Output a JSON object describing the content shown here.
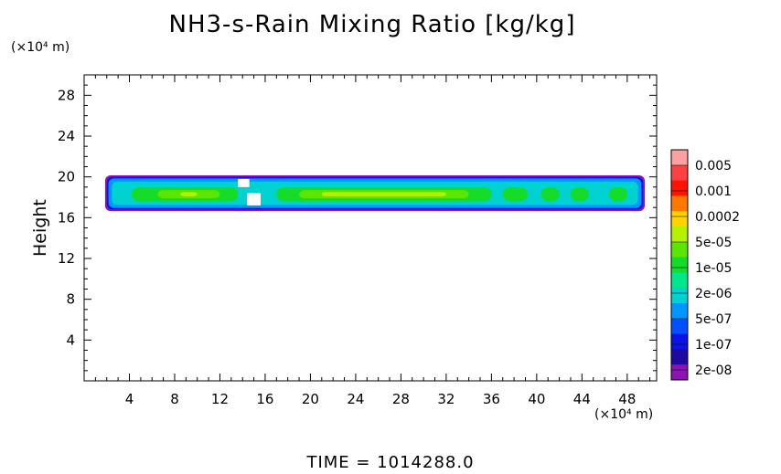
{
  "title": "NH3-s-Rain Mixing Ratio [kg/kg]",
  "y_unit": "(×10⁴ m)",
  "x_unit": "(×10⁴ m)",
  "time_label": "TIME  =  1014288.0",
  "chart_data": {
    "type": "heatmap",
    "title": "NH3-s-Rain Mixing Ratio [kg/kg]",
    "ylabel": "Height",
    "xlabel": "",
    "x_unit": "(×10⁴ m)",
    "y_unit": "(×10⁴ m)",
    "xlim": [
      0,
      50.6
    ],
    "ylim": [
      0,
      30
    ],
    "x_ticks": [
      4,
      8,
      12,
      16,
      20,
      24,
      28,
      32,
      36,
      40,
      44,
      48
    ],
    "y_ticks": [
      4,
      8,
      12,
      16,
      20,
      24,
      28
    ],
    "colorbar": {
      "labels": [
        "0.005",
        "0.001",
        "0.0002",
        "5e-05",
        "1e-05",
        "2e-06",
        "5e-07",
        "1e-07",
        "2e-08"
      ],
      "colors": [
        "#ffa0a0",
        "#ff4040",
        "#ff1400",
        "#ff7800",
        "#ffd200",
        "#b4f000",
        "#5ae600",
        "#14dc28",
        "#00e68c",
        "#00d2d2",
        "#0096ff",
        "#0050ff",
        "#0a14e6",
        "#1e0aa0",
        "#8c14b4"
      ]
    },
    "layer": {
      "x_range": [
        2.2,
        49.2
      ],
      "y_range": [
        17.0,
        19.8
      ],
      "core_y_range": [
        17.6,
        19.0
      ],
      "max_level": "5e-05"
    }
  }
}
